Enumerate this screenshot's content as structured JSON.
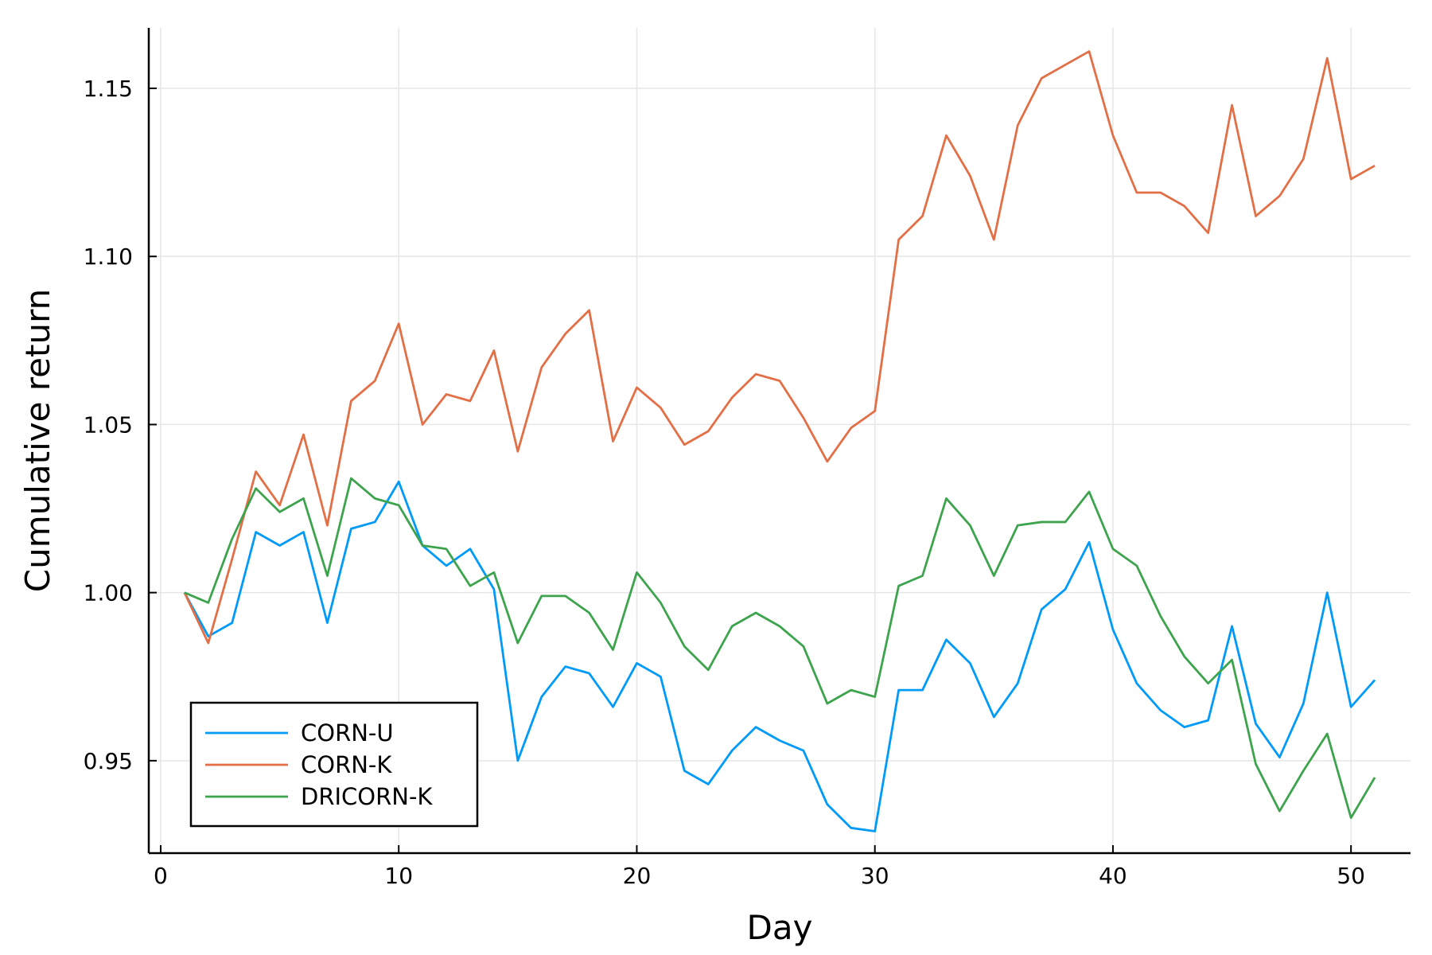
{
  "chart_data": {
    "type": "line",
    "title": "",
    "xlabel": "Day",
    "ylabel": "Cumulative return",
    "xlim": [
      -0.5,
      52.5
    ],
    "ylim": [
      0.9225,
      1.168
    ],
    "xticks": [
      0,
      10,
      20,
      30,
      40,
      50
    ],
    "xtick_labels": [
      "0",
      "10",
      "20",
      "30",
      "40",
      "50"
    ],
    "yticks": [
      0.95,
      1.0,
      1.05,
      1.1,
      1.15
    ],
    "ytick_labels": [
      "0.95",
      "1.00",
      "1.05",
      "1.10",
      "1.15"
    ],
    "grid": true,
    "legend_position": "bottom-left",
    "x": [
      1,
      2,
      3,
      4,
      5,
      6,
      7,
      8,
      9,
      10,
      11,
      12,
      13,
      14,
      15,
      16,
      17,
      18,
      19,
      20,
      21,
      22,
      23,
      24,
      25,
      26,
      27,
      28,
      29,
      30,
      31,
      32,
      33,
      34,
      35,
      36,
      37,
      38,
      39,
      40,
      41,
      42,
      43,
      44,
      45,
      46,
      47,
      48,
      49,
      50,
      51
    ],
    "series": [
      {
        "name": "CORN-U",
        "color": "#009af9",
        "values": [
          1.0,
          0.987,
          0.991,
          1.018,
          1.014,
          1.018,
          0.991,
          1.019,
          1.021,
          1.033,
          1.014,
          1.008,
          1.013,
          1.001,
          0.95,
          0.969,
          0.978,
          0.976,
          0.966,
          0.979,
          0.975,
          0.947,
          0.943,
          0.953,
          0.96,
          0.956,
          0.953,
          0.937,
          0.93,
          0.929,
          0.971,
          0.971,
          0.986,
          0.979,
          0.963,
          0.973,
          0.995,
          1.001,
          1.015,
          0.989,
          0.973,
          0.965,
          0.96,
          0.962,
          0.99,
          0.961,
          0.951,
          0.967,
          1.0,
          0.966,
          0.974
        ]
      },
      {
        "name": "CORN-K",
        "color": "#e26f46",
        "values": [
          1.0,
          0.985,
          1.01,
          1.036,
          1.026,
          1.047,
          1.02,
          1.057,
          1.063,
          1.08,
          1.05,
          1.059,
          1.057,
          1.072,
          1.042,
          1.067,
          1.077,
          1.084,
          1.045,
          1.061,
          1.055,
          1.044,
          1.048,
          1.058,
          1.065,
          1.063,
          1.052,
          1.039,
          1.049,
          1.054,
          1.105,
          1.112,
          1.136,
          1.124,
          1.105,
          1.139,
          1.153,
          1.157,
          1.161,
          1.136,
          1.119,
          1.119,
          1.115,
          1.107,
          1.145,
          1.112,
          1.118,
          1.129,
          1.159,
          1.123,
          1.127
        ]
      },
      {
        "name": "DRICORN-K",
        "color": "#3da44d",
        "values": [
          1.0,
          0.997,
          1.016,
          1.031,
          1.024,
          1.028,
          1.005,
          1.034,
          1.028,
          1.026,
          1.014,
          1.013,
          1.002,
          1.006,
          0.985,
          0.999,
          0.999,
          0.994,
          0.983,
          1.006,
          0.997,
          0.984,
          0.977,
          0.99,
          0.994,
          0.99,
          0.984,
          0.967,
          0.971,
          0.969,
          1.002,
          1.005,
          1.028,
          1.02,
          1.005,
          1.02,
          1.021,
          1.021,
          1.03,
          1.013,
          1.008,
          0.993,
          0.981,
          0.973,
          0.98,
          0.949,
          0.935,
          0.947,
          0.958,
          0.933,
          0.945
        ]
      }
    ]
  }
}
